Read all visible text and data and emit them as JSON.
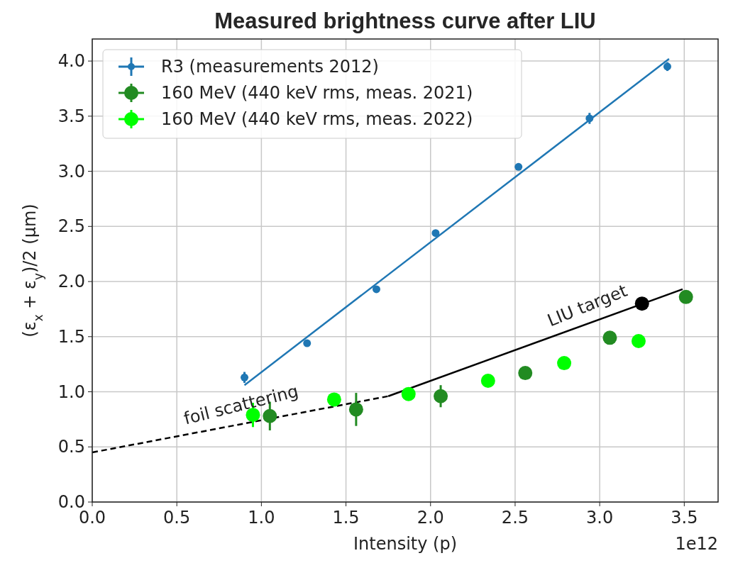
{
  "chart_data": {
    "type": "scatter",
    "title": "Measured brightness curve after LIU",
    "xlabel": "Intensity (p)",
    "ylabel": "(ε$_{x}$ + ε$_{y}$)/2 (μm)",
    "xlim": [
      0,
      3.7
    ],
    "ylim": [
      0,
      4.2
    ],
    "xticks": [
      {
        "value": 0,
        "label": "0.0"
      },
      {
        "value": 0.5,
        "label": "0.5"
      },
      {
        "value": 1,
        "label": "1.0"
      },
      {
        "value": 1.5,
        "label": "1.5"
      },
      {
        "value": 2,
        "label": "2.0"
      },
      {
        "value": 2.5,
        "label": "2.5"
      },
      {
        "value": 3,
        "label": "3.0"
      },
      {
        "value": 3.5,
        "label": "3.5"
      }
    ],
    "yticks": [
      {
        "value": 0,
        "label": "0.0"
      },
      {
        "value": 0.5,
        "label": "0.5"
      },
      {
        "value": 1,
        "label": "1.0"
      },
      {
        "value": 1.5,
        "label": "1.5"
      },
      {
        "value": 2,
        "label": "2.0"
      },
      {
        "value": 2.5,
        "label": "2.5"
      },
      {
        "value": 3,
        "label": "3.0"
      },
      {
        "value": 3.5,
        "label": "3.5"
      },
      {
        "value": 4,
        "label": "4.0"
      }
    ],
    "grid": true,
    "legend": "top left",
    "marker": "circle",
    "series": [
      {
        "name": "R3 (measurements 2012)",
        "color": "#1f77b4",
        "x": [
          0.9,
          1.27,
          1.68,
          2.03,
          2.52,
          2.94,
          3.4
        ],
        "values": [
          1.13,
          1.44,
          1.93,
          2.44,
          3.04,
          3.48,
          3.95
        ],
        "errors": [
          0.05,
          0.02,
          0.02,
          0.02,
          0.02,
          0.05,
          0.04
        ]
      },
      {
        "name": "160 MeV (440 keV rms, meas. 2021)",
        "color": "#228b22",
        "x": [
          1.05,
          1.56,
          2.06,
          2.56,
          3.06,
          3.51
        ],
        "values": [
          0.78,
          0.84,
          0.96,
          1.17,
          1.49,
          1.86
        ],
        "errors": [
          0.13,
          0.15,
          0.1,
          null,
          null,
          null
        ]
      },
      {
        "name": "160 MeV (440 keV rms, meas. 2022)",
        "color": "#00ff00",
        "x": [
          0.95,
          1.43,
          1.87,
          2.34,
          2.79,
          3.23
        ],
        "values": [
          0.79,
          0.93,
          0.98,
          1.1,
          1.26,
          1.46
        ],
        "errors": [
          0.11,
          0.04,
          0.03,
          null,
          null,
          null
        ]
      },
      {
        "color": "#000000",
        "x": [
          3.25
        ],
        "values": [
          1.8
        ]
      },
      {
        "type": "line",
        "color": "#1f77b4",
        "x": [
          0.9,
          3.41
        ],
        "values": [
          1.06,
          4.02
        ],
        "marker": "none",
        "line_style": "solid"
      },
      {
        "type": "line",
        "color": "#000000",
        "x": [
          0,
          1.75
        ],
        "values": [
          0.45,
          0.96
        ],
        "marker": "none",
        "line_style": "dashed"
      },
      {
        "type": "line",
        "color": "#000000",
        "x": [
          1.75,
          3.49
        ],
        "values": [
          0.96,
          1.93
        ],
        "marker": "none",
        "line_style": "solid"
      }
    ],
    "annotations": [
      "foil scattering",
      "LIU target",
      "1e12"
    ]
  }
}
